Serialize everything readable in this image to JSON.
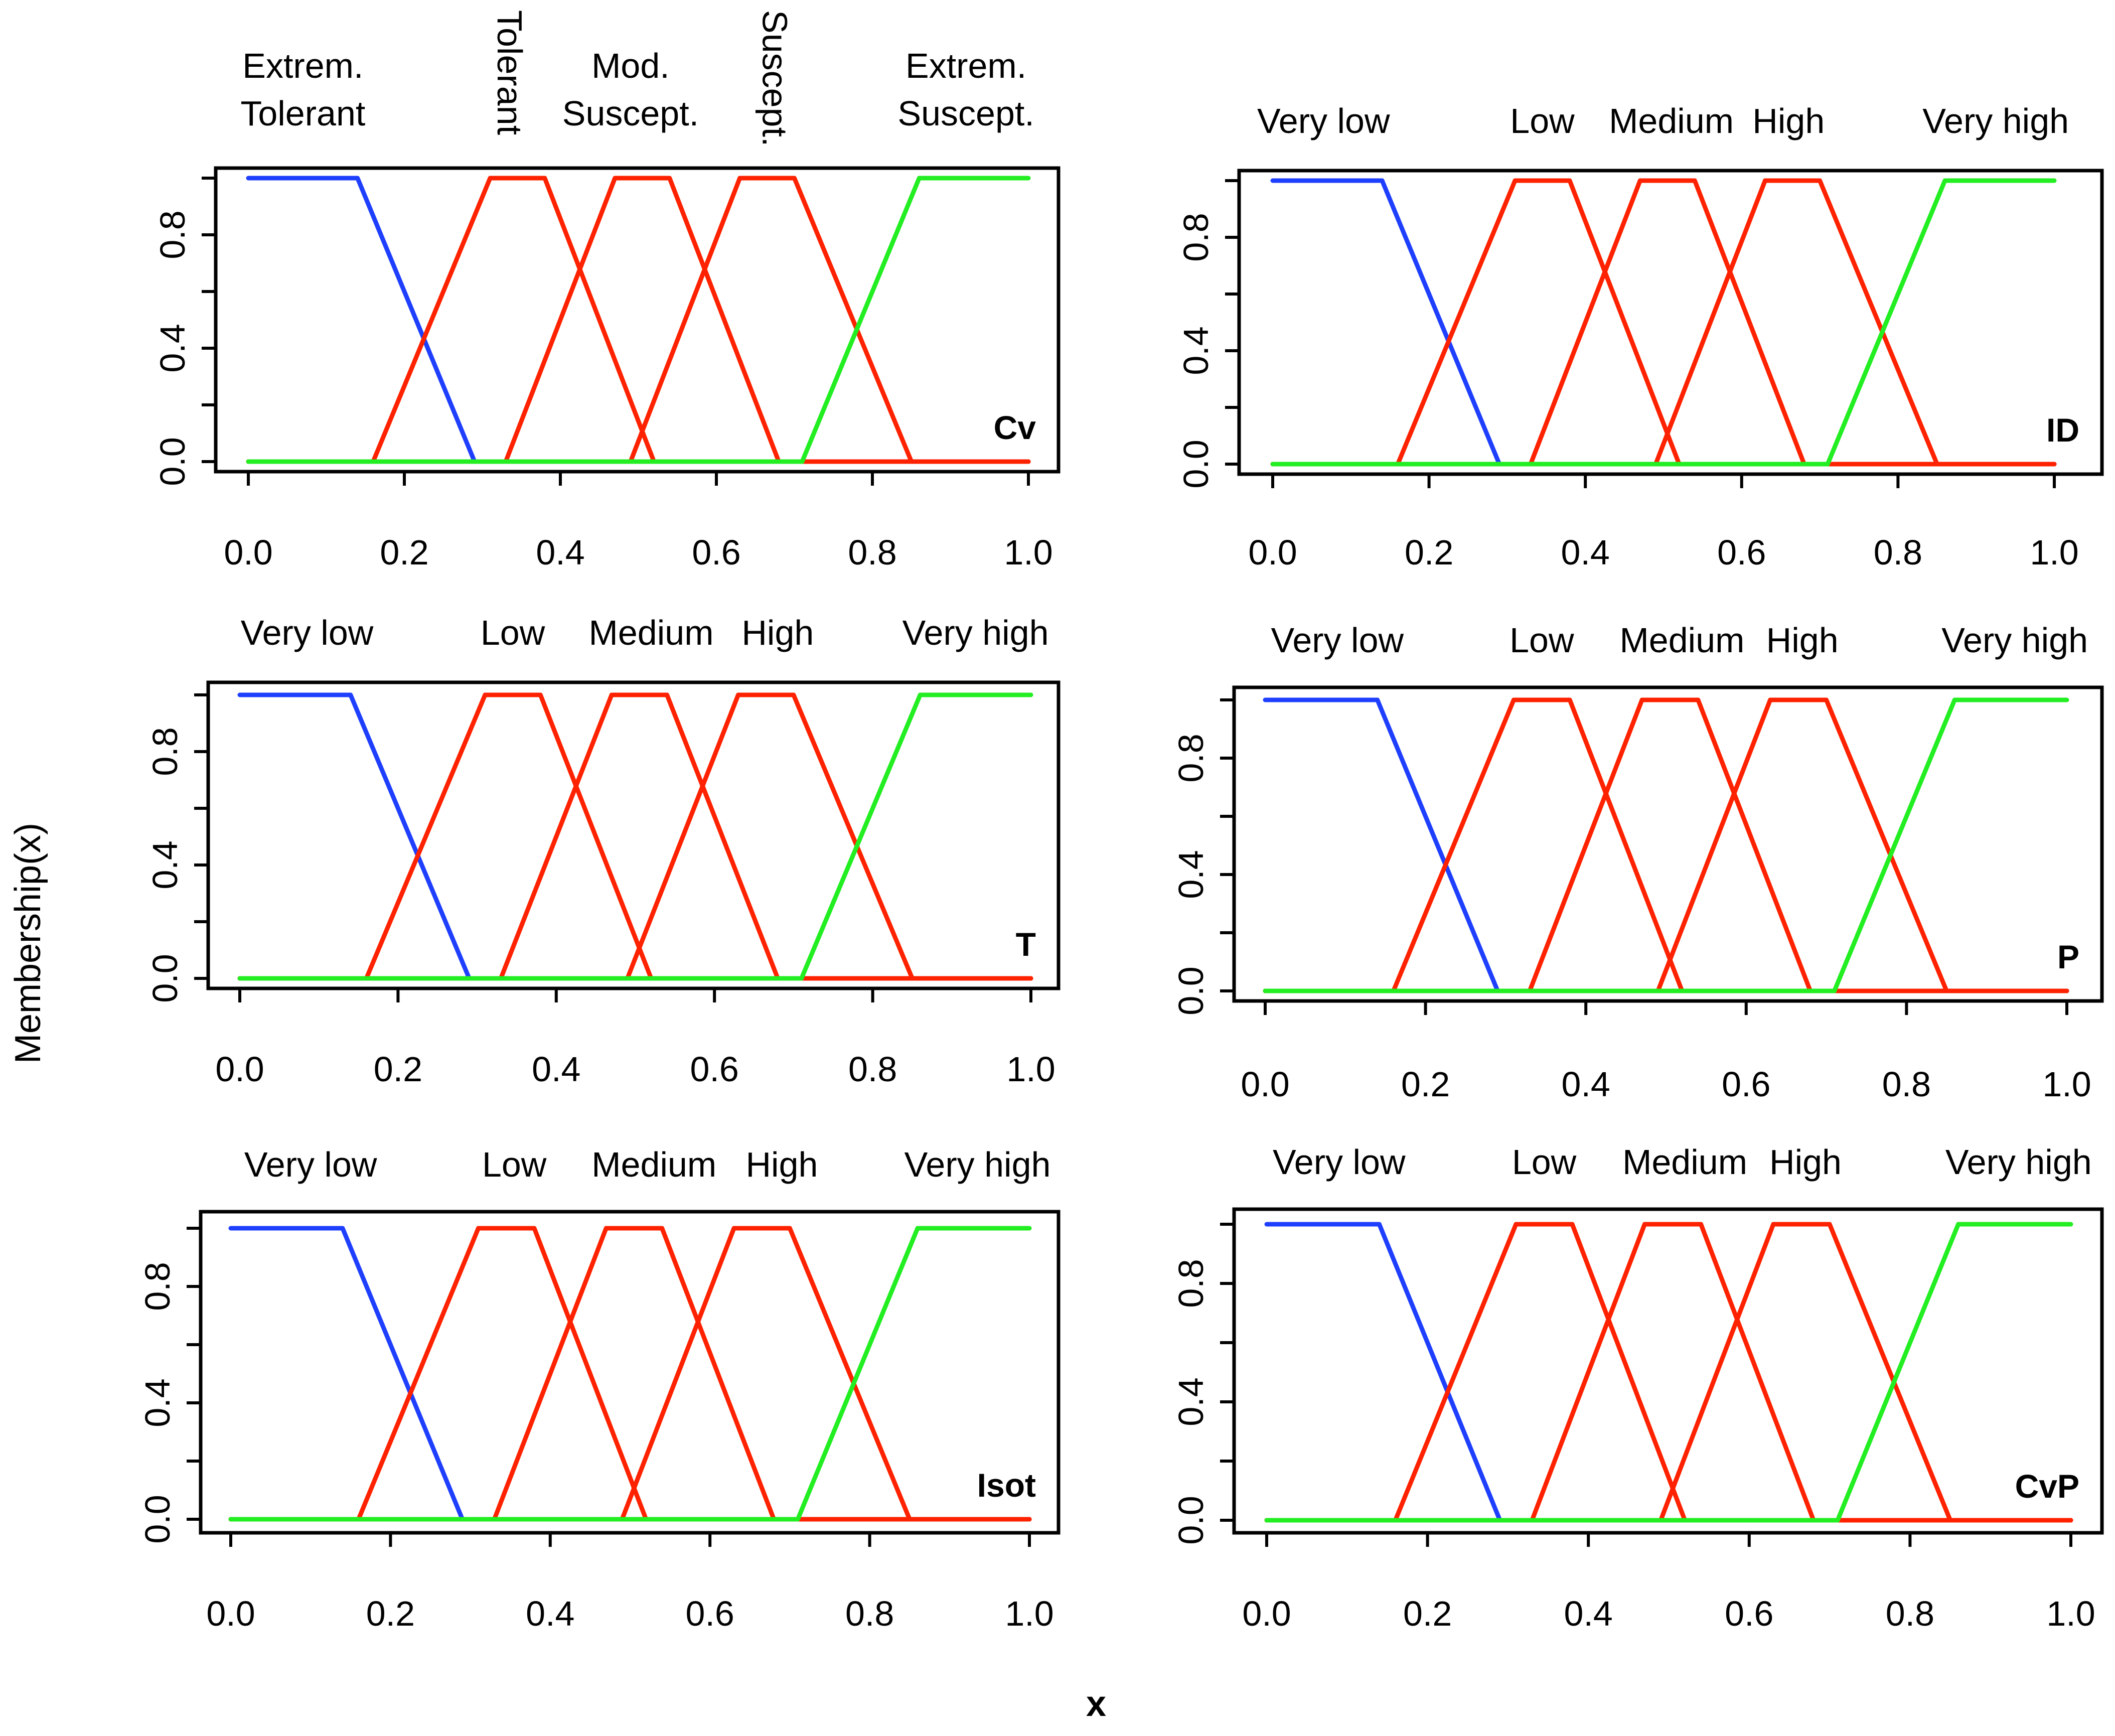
{
  "figure": {
    "ylabel": "Membership(x)",
    "xlabel": "x"
  },
  "colors": {
    "low_end": "#1f3fff",
    "middle": "#ff2200",
    "high_end": "#22ee22",
    "axis": "#000000"
  },
  "chart_data": [
    {
      "type": "line",
      "title": "Cv",
      "xlim": [
        0,
        1
      ],
      "ylim": [
        0,
        1
      ],
      "xticks": [
        "0.0",
        "0.2",
        "0.4",
        "0.6",
        "0.8",
        "1.0"
      ],
      "yticks": [
        "0.0",
        "0.4",
        "0.8"
      ],
      "labels": [
        {
          "text": "Extrem.\nTolerant",
          "x": 0.07,
          "rotated": false
        },
        {
          "text": "Tolerant",
          "x": 0.335,
          "rotated": true
        },
        {
          "text": "Mod.\nSuscept.",
          "x": 0.49,
          "rotated": false
        },
        {
          "text": "Suscept.",
          "x": 0.675,
          "rotated": true
        },
        {
          "text": "Extrem.\nSuscept.",
          "x": 0.92,
          "rotated": false
        }
      ],
      "series": [
        {
          "name": "Extrem. Tolerant",
          "color": "#1f3fff",
          "x": [
            0,
            0.14,
            0.29,
            1
          ],
          "y": [
            1,
            1,
            0,
            0
          ]
        },
        {
          "name": "Tolerant",
          "color": "#ff2200",
          "x": [
            0,
            0.16,
            0.31,
            0.38,
            0.52,
            1
          ],
          "y": [
            0,
            0,
            1,
            1,
            0,
            0
          ]
        },
        {
          "name": "Mod. Suscept.",
          "color": "#ff2200",
          "x": [
            0,
            0.33,
            0.47,
            0.54,
            0.68,
            1
          ],
          "y": [
            0,
            0,
            1,
            1,
            0,
            0
          ]
        },
        {
          "name": "Suscept.",
          "color": "#ff2200",
          "x": [
            0,
            0.49,
            0.63,
            0.7,
            0.85,
            1
          ],
          "y": [
            0,
            0,
            1,
            1,
            0,
            0
          ]
        },
        {
          "name": "Extrem. Suscept.",
          "color": "#22ee22",
          "x": [
            0,
            0.71,
            0.86,
            1
          ],
          "y": [
            0,
            0,
            1,
            1
          ]
        }
      ]
    },
    {
      "type": "line",
      "title": "ID",
      "xlim": [
        0,
        1
      ],
      "ylim": [
        0,
        1
      ],
      "xticks": [
        "0.0",
        "0.2",
        "0.4",
        "0.6",
        "0.8",
        "1.0"
      ],
      "yticks": [
        "0.0",
        "0.4",
        "0.8"
      ],
      "labels": [
        {
          "text": "Very low",
          "x": 0.065,
          "rotated": false
        },
        {
          "text": "Low",
          "x": 0.345,
          "rotated": false
        },
        {
          "text": "Medium",
          "x": 0.51,
          "rotated": false
        },
        {
          "text": "High",
          "x": 0.66,
          "rotated": false
        },
        {
          "text": "Very high",
          "x": 0.925,
          "rotated": false
        }
      ],
      "series": [
        {
          "name": "Very low",
          "color": "#1f3fff",
          "x": [
            0,
            0.14,
            0.29,
            1
          ],
          "y": [
            1,
            1,
            0,
            0
          ]
        },
        {
          "name": "Low",
          "color": "#ff2200",
          "x": [
            0,
            0.16,
            0.31,
            0.38,
            0.52,
            1
          ],
          "y": [
            0,
            0,
            1,
            1,
            0,
            0
          ]
        },
        {
          "name": "Medium",
          "color": "#ff2200",
          "x": [
            0,
            0.33,
            0.47,
            0.54,
            0.68,
            1
          ],
          "y": [
            0,
            0,
            1,
            1,
            0,
            0
          ]
        },
        {
          "name": "High",
          "color": "#ff2200",
          "x": [
            0,
            0.49,
            0.63,
            0.7,
            0.85,
            1
          ],
          "y": [
            0,
            0,
            1,
            1,
            0,
            0
          ]
        },
        {
          "name": "Very high",
          "color": "#22ee22",
          "x": [
            0,
            0.71,
            0.86,
            1
          ],
          "y": [
            0,
            0,
            1,
            1
          ]
        }
      ]
    },
    {
      "type": "line",
      "title": "T",
      "xlim": [
        0,
        1
      ],
      "ylim": [
        0,
        1
      ],
      "xticks": [
        "0.0",
        "0.2",
        "0.4",
        "0.6",
        "0.8",
        "1.0"
      ],
      "yticks": [
        "0.0",
        "0.4",
        "0.8"
      ],
      "labels": [
        {
          "text": "Very low",
          "x": 0.085,
          "rotated": false
        },
        {
          "text": "Low",
          "x": 0.345,
          "rotated": false
        },
        {
          "text": "Medium",
          "x": 0.52,
          "rotated": false
        },
        {
          "text": "High",
          "x": 0.68,
          "rotated": false
        },
        {
          "text": "Very high",
          "x": 0.93,
          "rotated": false
        }
      ],
      "series": [
        {
          "name": "Very low",
          "color": "#1f3fff",
          "x": [
            0,
            0.14,
            0.29,
            1
          ],
          "y": [
            1,
            1,
            0,
            0
          ]
        },
        {
          "name": "Low",
          "color": "#ff2200",
          "x": [
            0,
            0.16,
            0.31,
            0.38,
            0.52,
            1
          ],
          "y": [
            0,
            0,
            1,
            1,
            0,
            0
          ]
        },
        {
          "name": "Medium",
          "color": "#ff2200",
          "x": [
            0,
            0.33,
            0.47,
            0.54,
            0.68,
            1
          ],
          "y": [
            0,
            0,
            1,
            1,
            0,
            0
          ]
        },
        {
          "name": "High",
          "color": "#ff2200",
          "x": [
            0,
            0.49,
            0.63,
            0.7,
            0.85,
            1
          ],
          "y": [
            0,
            0,
            1,
            1,
            0,
            0
          ]
        },
        {
          "name": "Very high",
          "color": "#22ee22",
          "x": [
            0,
            0.71,
            0.86,
            1
          ],
          "y": [
            0,
            0,
            1,
            1
          ]
        }
      ]
    },
    {
      "type": "line",
      "title": "P",
      "xlim": [
        0,
        1
      ],
      "ylim": [
        0,
        1
      ],
      "xticks": [
        "0.0",
        "0.2",
        "0.4",
        "0.6",
        "0.8",
        "1.0"
      ],
      "yticks": [
        "0.0",
        "0.4",
        "0.8"
      ],
      "labels": [
        {
          "text": "Very low",
          "x": 0.09,
          "rotated": false
        },
        {
          "text": "Low",
          "x": 0.345,
          "rotated": false
        },
        {
          "text": "Medium",
          "x": 0.52,
          "rotated": false
        },
        {
          "text": "High",
          "x": 0.67,
          "rotated": false
        },
        {
          "text": "Very high",
          "x": 0.935,
          "rotated": false
        }
      ],
      "series": [
        {
          "name": "Very low",
          "color": "#1f3fff",
          "x": [
            0,
            0.14,
            0.29,
            1
          ],
          "y": [
            1,
            1,
            0,
            0
          ]
        },
        {
          "name": "Low",
          "color": "#ff2200",
          "x": [
            0,
            0.16,
            0.31,
            0.38,
            0.52,
            1
          ],
          "y": [
            0,
            0,
            1,
            1,
            0,
            0
          ]
        },
        {
          "name": "Medium",
          "color": "#ff2200",
          "x": [
            0,
            0.33,
            0.47,
            0.54,
            0.68,
            1
          ],
          "y": [
            0,
            0,
            1,
            1,
            0,
            0
          ]
        },
        {
          "name": "High",
          "color": "#ff2200",
          "x": [
            0,
            0.49,
            0.63,
            0.7,
            0.85,
            1
          ],
          "y": [
            0,
            0,
            1,
            1,
            0,
            0
          ]
        },
        {
          "name": "Very high",
          "color": "#22ee22",
          "x": [
            0,
            0.71,
            0.86,
            1
          ],
          "y": [
            0,
            0,
            1,
            1
          ]
        }
      ]
    },
    {
      "type": "line",
      "title": "Isot",
      "xlim": [
        0,
        1
      ],
      "ylim": [
        0,
        1
      ],
      "xticks": [
        "0.0",
        "0.2",
        "0.4",
        "0.6",
        "0.8",
        "1.0"
      ],
      "yticks": [
        "0.0",
        "0.4",
        "0.8"
      ],
      "labels": [
        {
          "text": "Very low",
          "x": 0.1,
          "rotated": false
        },
        {
          "text": "Low",
          "x": 0.355,
          "rotated": false
        },
        {
          "text": "Medium",
          "x": 0.53,
          "rotated": false
        },
        {
          "text": "High",
          "x": 0.69,
          "rotated": false
        },
        {
          "text": "Very high",
          "x": 0.935,
          "rotated": false
        }
      ],
      "series": [
        {
          "name": "Very low",
          "color": "#1f3fff",
          "x": [
            0,
            0.14,
            0.29,
            1
          ],
          "y": [
            1,
            1,
            0,
            0
          ]
        },
        {
          "name": "Low",
          "color": "#ff2200",
          "x": [
            0,
            0.16,
            0.31,
            0.38,
            0.52,
            1
          ],
          "y": [
            0,
            0,
            1,
            1,
            0,
            0
          ]
        },
        {
          "name": "Medium",
          "color": "#ff2200",
          "x": [
            0,
            0.33,
            0.47,
            0.54,
            0.68,
            1
          ],
          "y": [
            0,
            0,
            1,
            1,
            0,
            0
          ]
        },
        {
          "name": "High",
          "color": "#ff2200",
          "x": [
            0,
            0.49,
            0.63,
            0.7,
            0.85,
            1
          ],
          "y": [
            0,
            0,
            1,
            1,
            0,
            0
          ]
        },
        {
          "name": "Very high",
          "color": "#22ee22",
          "x": [
            0,
            0.71,
            0.86,
            1
          ],
          "y": [
            0,
            0,
            1,
            1
          ]
        }
      ]
    },
    {
      "type": "line",
      "title": "CvP",
      "xlim": [
        0,
        1
      ],
      "ylim": [
        0,
        1
      ],
      "xticks": [
        "0.0",
        "0.2",
        "0.4",
        "0.6",
        "0.8",
        "1.0"
      ],
      "yticks": [
        "0.0",
        "0.4",
        "0.8"
      ],
      "labels": [
        {
          "text": "Very low",
          "x": 0.09,
          "rotated": false
        },
        {
          "text": "Low",
          "x": 0.345,
          "rotated": false
        },
        {
          "text": "Medium",
          "x": 0.52,
          "rotated": false
        },
        {
          "text": "High",
          "x": 0.67,
          "rotated": false
        },
        {
          "text": "Very high",
          "x": 0.935,
          "rotated": false
        }
      ],
      "series": [
        {
          "name": "Very low",
          "color": "#1f3fff",
          "x": [
            0,
            0.14,
            0.29,
            1
          ],
          "y": [
            1,
            1,
            0,
            0
          ]
        },
        {
          "name": "Low",
          "color": "#ff2200",
          "x": [
            0,
            0.16,
            0.31,
            0.38,
            0.52,
            1
          ],
          "y": [
            0,
            0,
            1,
            1,
            0,
            0
          ]
        },
        {
          "name": "Medium",
          "color": "#ff2200",
          "x": [
            0,
            0.33,
            0.47,
            0.54,
            0.68,
            1
          ],
          "y": [
            0,
            0,
            1,
            1,
            0,
            0
          ]
        },
        {
          "name": "High",
          "color": "#ff2200",
          "x": [
            0,
            0.49,
            0.63,
            0.7,
            0.85,
            1
          ],
          "y": [
            0,
            0,
            1,
            1,
            0,
            0
          ]
        },
        {
          "name": "Very high",
          "color": "#22ee22",
          "x": [
            0,
            0.71,
            0.86,
            1
          ],
          "y": [
            0,
            0,
            1,
            1
          ]
        }
      ]
    }
  ]
}
